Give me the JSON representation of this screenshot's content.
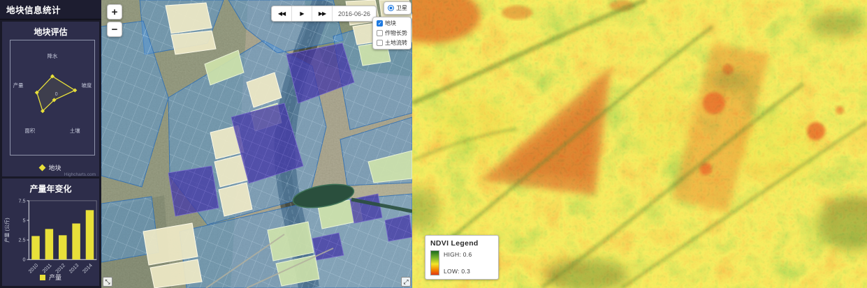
{
  "sidebar": {
    "header": "地块信息统计",
    "radar_panel": {
      "title": "地块评估",
      "credit": "Highcharts.com",
      "center_label": "0"
    },
    "bar_panel": {
      "title": "产量年变化"
    }
  },
  "map": {
    "zoom_in": "+",
    "zoom_out": "−",
    "playback": {
      "rewind": "◀◀",
      "play": "▶",
      "forward": "▶▶"
    },
    "date": "2016-06-26",
    "layers": [
      {
        "label": "卫星",
        "type": "radio",
        "checked": true
      },
      {
        "label": "地块",
        "type": "checkbox",
        "checked": true
      },
      {
        "label": "作物长势",
        "type": "checkbox",
        "checked": false
      },
      {
        "label": "土地流转",
        "type": "checkbox",
        "checked": false
      }
    ],
    "icons": {
      "fullscreen_left": "⤡",
      "fullscreen_right": "⤢"
    }
  },
  "ndvi": {
    "legend_title": "NDVI Legend",
    "high_label": "HIGH: 0.6",
    "low_label": "LOW: 0.3",
    "high_color": "#1c6b1e",
    "low_color": "#e23812"
  },
  "chart_data": [
    {
      "type": "radar",
      "title": "地块评估",
      "categories": [
        "降水",
        "坡度",
        "土壤",
        "面积",
        "产量"
      ],
      "series": [
        {
          "name": "地块",
          "values": [
            0.72,
            0.8,
            0.1,
            0.56,
            0.55
          ]
        }
      ],
      "value_range": [
        0,
        1
      ],
      "center_label": "0",
      "color": "#e8e03a",
      "legend_position": "bottom"
    },
    {
      "type": "bar",
      "title": "产量年变化",
      "categories": [
        "2010",
        "2011",
        "2012",
        "2013",
        "2014"
      ],
      "values": [
        3.0,
        3.9,
        3.1,
        4.6,
        6.3
      ],
      "xlabel": "",
      "ylabel": "产量 (公斤)",
      "yticks": [
        0,
        2.5,
        5,
        7.5
      ],
      "ylim": [
        0,
        7.5
      ],
      "legend": "产量",
      "color": "#e8e03a",
      "legend_position": "bottom"
    }
  ]
}
